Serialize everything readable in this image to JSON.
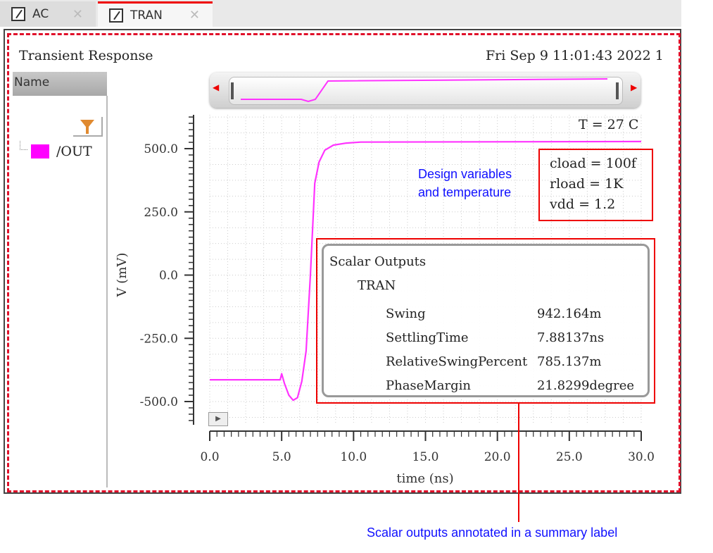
{
  "tabs": [
    {
      "label": "AC",
      "active": false
    },
    {
      "label": "TRAN",
      "active": true
    }
  ],
  "window": {
    "title": "Transient Response",
    "timestamp": "Fri Sep 9 11:01:43 2022  1"
  },
  "sidebar": {
    "header": "Name",
    "filter_icon": "funnel-icon",
    "signals": [
      {
        "label": "/OUT",
        "color": "#ff00ff"
      }
    ]
  },
  "plot": {
    "temperature": "T = 27 C",
    "design_vars": [
      "cload = 100f",
      "rload = 1K",
      "vdd = 1.2"
    ],
    "scalar": {
      "title": "Scalar Outputs",
      "group": "TRAN",
      "rows": [
        {
          "name": "Swing",
          "value": "942.164m"
        },
        {
          "name": "SettlingTime",
          "value": "7.88137ns"
        },
        {
          "name": "RelativeSwingPercent",
          "value": "785.137m"
        },
        {
          "name": "PhaseMargin",
          "value": "21.8299degree"
        }
      ]
    }
  },
  "annotations": {
    "design": "Design variables\nand temperature",
    "design_l1": "Design variables",
    "design_l2": "and temperature",
    "scalar": "Scalar outputs annotated in a summary label",
    "color": "#e00000"
  },
  "chart_data": {
    "type": "line",
    "title": "",
    "xlabel": "time (ns)",
    "ylabel": "V (mV)",
    "xlim": [
      0,
      30
    ],
    "ylim": [
      -600,
      650
    ],
    "grid": true,
    "xticks": [
      "0.0",
      "5.0",
      "10.0",
      "15.0",
      "20.0",
      "25.0",
      "30.0"
    ],
    "yticks": [
      "500.0",
      "250.0",
      "0.0",
      "-250.0",
      "-500.0"
    ],
    "series": [
      {
        "name": "/OUT",
        "color": "#ff33ff",
        "x": [
          0,
          4.9,
          5.0,
          5.2,
          5.5,
          5.8,
          6.1,
          6.4,
          6.7,
          7.0,
          7.3,
          7.6,
          8.0,
          8.6,
          9.5,
          10.5,
          30
        ],
        "y": [
          -414,
          -414,
          -390,
          -430,
          -475,
          -495,
          -485,
          -420,
          -300,
          0,
          363,
          447,
          494,
          514,
          522,
          526,
          528
        ]
      }
    ]
  }
}
